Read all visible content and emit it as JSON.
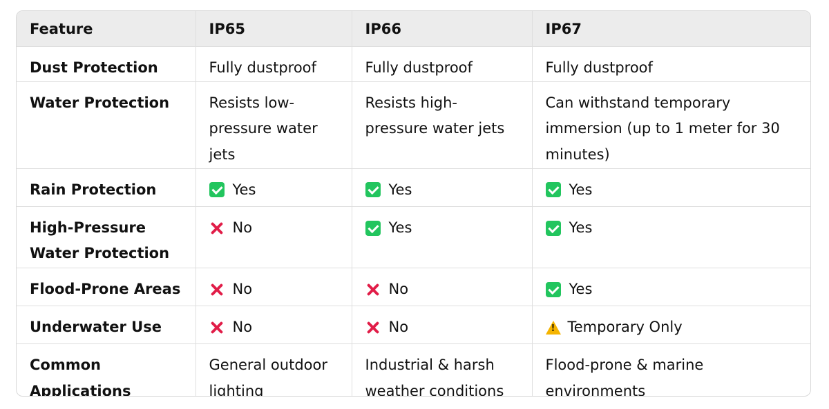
{
  "table": {
    "headers": [
      "Feature",
      "IP65",
      "IP66",
      "IP67"
    ],
    "rows": [
      {
        "feature": "Dust Protection",
        "cells": [
          {
            "text": "Fully dustproof"
          },
          {
            "text": "Fully dustproof"
          },
          {
            "text": "Fully dustproof"
          }
        ]
      },
      {
        "feature": "Water Protection",
        "cells": [
          {
            "text": "Resists low-pressure water jets"
          },
          {
            "text": "Resists high-pressure water jets"
          },
          {
            "text": "Can withstand temporary immersion (up to 1 meter for 30 minutes)"
          }
        ]
      },
      {
        "feature": "Rain Protection",
        "cells": [
          {
            "icon": "check-icon",
            "text": "Yes"
          },
          {
            "icon": "check-icon",
            "text": "Yes"
          },
          {
            "icon": "check-icon",
            "text": "Yes"
          }
        ]
      },
      {
        "feature": "High-Pressure Water Protection",
        "cells": [
          {
            "icon": "cross-icon",
            "text": "No"
          },
          {
            "icon": "check-icon",
            "text": "Yes"
          },
          {
            "icon": "check-icon",
            "text": "Yes"
          }
        ]
      },
      {
        "feature": "Flood-Prone Areas",
        "cells": [
          {
            "icon": "cross-icon",
            "text": "No"
          },
          {
            "icon": "cross-icon",
            "text": "No"
          },
          {
            "icon": "check-icon",
            "text": "Yes"
          }
        ]
      },
      {
        "feature": "Underwater Use",
        "cells": [
          {
            "icon": "cross-icon",
            "text": "No"
          },
          {
            "icon": "cross-icon",
            "text": "No"
          },
          {
            "icon": "warning-icon",
            "text": "Temporary Only"
          }
        ]
      },
      {
        "feature": "Common Applications",
        "cells": [
          {
            "text": "General outdoor lighting"
          },
          {
            "text": "Industrial & harsh weather conditions"
          },
          {
            "text": "Flood-prone & marine environments"
          }
        ]
      }
    ]
  },
  "colors": {
    "header_bg": "#ececec",
    "border": "#dedede",
    "check": "#22c55e",
    "cross": "#e11d48",
    "warning": "#f5b400"
  }
}
